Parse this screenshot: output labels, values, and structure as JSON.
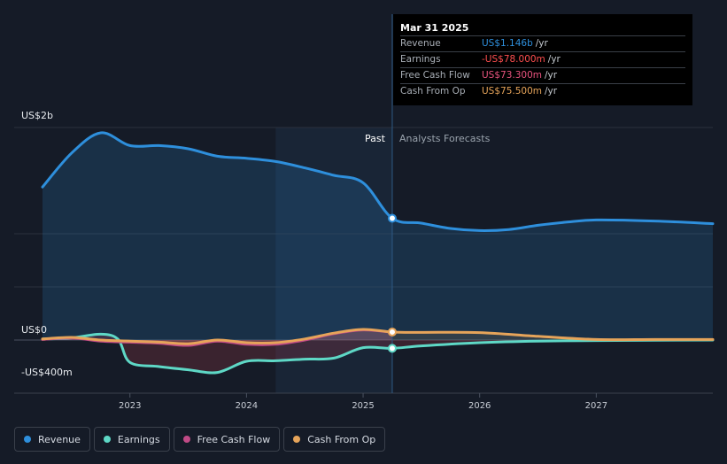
{
  "colors": {
    "revenue": "#2e8fdc",
    "earnings": "#5ed8c6",
    "free_cash_flow": "#c04a86",
    "cash_from_op": "#e6a45a"
  },
  "tooltip": {
    "date": "Mar 31 2025",
    "rows": [
      {
        "label": "Revenue",
        "value": "US$1.146b",
        "unit": "/yr",
        "color": "#2e8fdc"
      },
      {
        "label": "Earnings",
        "value": "-US$78.000m",
        "unit": "/yr",
        "color": "#ff4f4f"
      },
      {
        "label": "Free Cash Flow",
        "value": "US$73.300m",
        "unit": "/yr",
        "color": "#e8537e"
      },
      {
        "label": "Cash From Op",
        "value": "US$75.500m",
        "unit": "/yr",
        "color": "#e6a45a"
      }
    ]
  },
  "legend": [
    {
      "label": "Revenue",
      "color": "#2e8fdc"
    },
    {
      "label": "Earnings",
      "color": "#5ed8c6"
    },
    {
      "label": "Free Cash Flow",
      "color": "#c04a86"
    },
    {
      "label": "Cash From Op",
      "color": "#e6a45a"
    }
  ],
  "chart_data": {
    "type": "line",
    "title": "",
    "ylabel": "",
    "xlabel": "",
    "ylim": [
      -400,
      2000
    ],
    "xlim": [
      2022.25,
      2028.0
    ],
    "y_tick_labels": [
      {
        "value": 2000,
        "label": "US$2b"
      },
      {
        "value": 0,
        "label": "US$0"
      },
      {
        "value": -400,
        "label": "-US$400m"
      }
    ],
    "x_ticks": [
      2023,
      2024,
      2025,
      2026,
      2027
    ],
    "past_label": "Past",
    "forecast_label": "Analysts Forecasts",
    "past_end": 2025.25,
    "highlight_start": 2024.25,
    "marker_x": 2025.25,
    "series": [
      {
        "name": "Revenue",
        "key": "revenue",
        "x": [
          2022.25,
          2022.5,
          2022.75,
          2023.0,
          2023.25,
          2023.5,
          2023.75,
          2024.0,
          2024.25,
          2024.5,
          2024.75,
          2025.0,
          2025.25,
          2025.5,
          2025.75,
          2026.0,
          2026.25,
          2026.5,
          2026.75,
          2027.0,
          2027.5,
          2028.0
        ],
        "values": [
          1440,
          1760,
          1950,
          1830,
          1830,
          1800,
          1730,
          1710,
          1680,
          1620,
          1550,
          1480,
          1146,
          1100,
          1050,
          1030,
          1040,
          1080,
          1110,
          1130,
          1120,
          1095
        ]
      },
      {
        "name": "Earnings",
        "key": "earnings",
        "x": [
          2022.25,
          2022.5,
          2022.75,
          2022.9,
          2023.0,
          2023.25,
          2023.5,
          2023.75,
          2024.0,
          2024.25,
          2024.5,
          2024.75,
          2025.0,
          2025.25,
          2025.5,
          2026.0,
          2026.5,
          2027.0,
          2027.5,
          2028.0
        ],
        "values": [
          10,
          20,
          55,
          5,
          -210,
          -250,
          -280,
          -305,
          -200,
          -195,
          -180,
          -170,
          -72,
          -78,
          -55,
          -25,
          -10,
          -5,
          -2,
          0
        ]
      },
      {
        "name": "Free Cash Flow",
        "key": "free_cash_flow",
        "x": [
          2022.25,
          2022.5,
          2022.75,
          2023.0,
          2023.25,
          2023.5,
          2023.75,
          2024.0,
          2024.25,
          2024.5,
          2024.75,
          2025.0,
          2025.25
        ],
        "values": [
          5,
          20,
          -10,
          -20,
          -30,
          -50,
          -10,
          -40,
          -40,
          0,
          60,
          95,
          73.3
        ]
      },
      {
        "name": "Cash From Op",
        "key": "cash_from_op",
        "x": [
          2022.25,
          2022.5,
          2022.75,
          2023.0,
          2023.25,
          2023.5,
          2023.75,
          2024.0,
          2024.25,
          2024.5,
          2024.75,
          2025.0,
          2025.25,
          2025.5,
          2026.0,
          2026.5,
          2027.0,
          2027.5,
          2028.0
        ],
        "values": [
          10,
          25,
          0,
          -10,
          -20,
          -35,
          0,
          -25,
          -25,
          10,
          65,
          100,
          75.5,
          72,
          70,
          35,
          5,
          5,
          5
        ]
      }
    ]
  }
}
